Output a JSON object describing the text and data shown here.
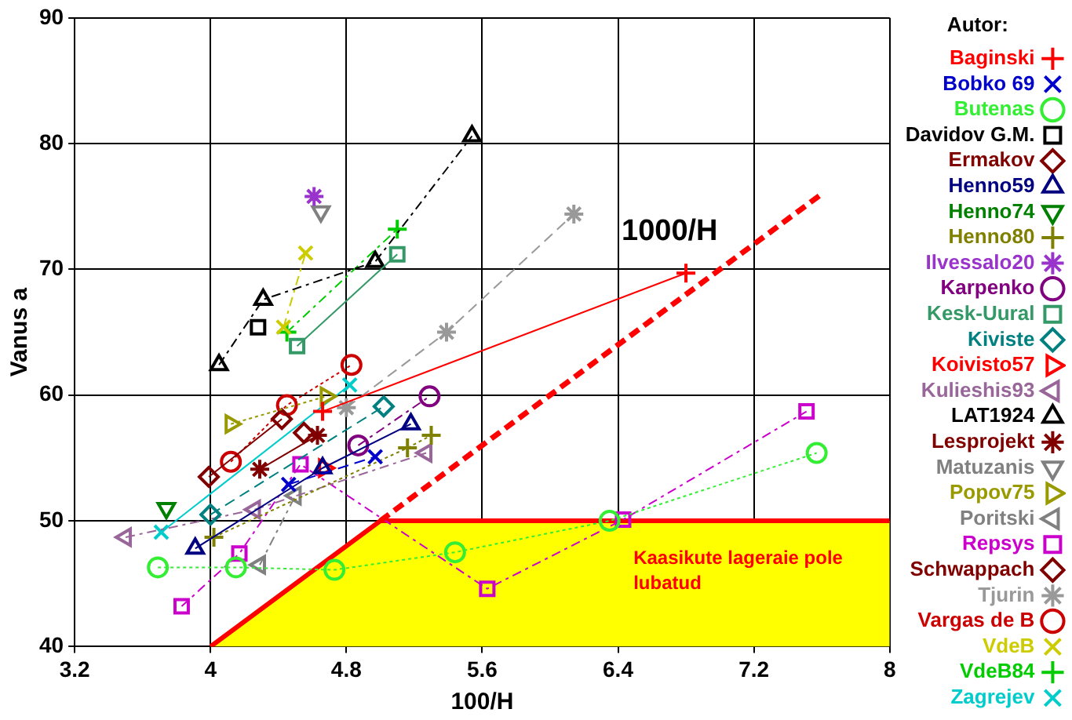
{
  "chart_data": {
    "type": "line",
    "xlabel": "100/H",
    "ylabel": "Vanus a",
    "legend_title": "Autor:",
    "legend": "right",
    "grid": true,
    "xlim": [
      3.2,
      8
    ],
    "xticks": [
      3.2,
      4,
      4.8,
      5.6,
      6.4,
      7.2,
      8
    ],
    "ylim": [
      40,
      90
    ],
    "yticks": [
      40,
      50,
      60,
      70,
      80,
      90
    ],
    "annotations": [
      "1000/H",
      "Kaasikute lageraie pole lubatud"
    ],
    "series": [
      {
        "type": "area",
        "color": "#ffff00",
        "x": [
          4,
          5,
          8
        ],
        "values": [
          40,
          50,
          50
        ],
        "marker": "none",
        "line_style": "solid"
      },
      {
        "type": "line",
        "color": "#ff0000",
        "x": [
          5,
          7.6
        ],
        "values": [
          50,
          76
        ],
        "marker": "none",
        "line_style": "dashed"
      },
      {
        "name": "Baginski",
        "color": "#ff0000",
        "x": [
          4.66,
          6.8
        ],
        "values": [
          58.7,
          69.7
        ],
        "marker": "plus",
        "line_style": "solid"
      },
      {
        "name": "Bobko 69",
        "color": "#0000cc",
        "x": [
          4.46,
          4.97
        ],
        "values": [
          52.9,
          55.1
        ],
        "marker": "x",
        "line_style": "dashed"
      },
      {
        "name": "Butenas",
        "color": "#33ee33",
        "x": [
          3.69,
          4.15,
          4.73,
          5.44,
          6.35,
          7.57
        ],
        "values": [
          46.3,
          46.3,
          46.1,
          47.5,
          50,
          55.4
        ],
        "marker": "circle",
        "line_style": "dotted"
      },
      {
        "name": "Davidov G.M.",
        "color": "#000000",
        "x": [
          4.28
        ],
        "values": [
          65.4
        ],
        "marker": "square",
        "line_style": "dashdot"
      },
      {
        "name": "Ermakov",
        "color": "#800000",
        "x": [
          4.55
        ],
        "values": [
          57
        ],
        "marker": "diamond",
        "line_style": "dashdot"
      },
      {
        "name": "Henno59",
        "color": "#000080",
        "x": [
          3.91,
          4.66,
          5.18
        ],
        "values": [
          47.8,
          54.2,
          57.7
        ],
        "marker": "triangle",
        "line_style": "solid"
      },
      {
        "name": "Henno74",
        "color": "#008000",
        "x": [
          3.74
        ],
        "values": [
          51
        ],
        "marker": "triangle_down",
        "line_style": "dashed"
      },
      {
        "name": "Henno80",
        "color": "#808000",
        "x": [
          4.02,
          5.16,
          5.3
        ],
        "values": [
          48.7,
          55.8,
          56.8
        ],
        "marker": "plus",
        "line_style": "dotted"
      },
      {
        "name": "Ilvessalo20",
        "color": "#9933cc",
        "x": [
          4.61
        ],
        "values": [
          75.8
        ],
        "marker": "cross",
        "line_style": "dashdot"
      },
      {
        "name": "Karpenko",
        "color": "#800080",
        "x": [
          4.87,
          5.29
        ],
        "values": [
          56,
          59.9
        ],
        "marker": "circle",
        "line_style": "dashdot"
      },
      {
        "name": "Kesk-Uural",
        "color": "#339966",
        "x": [
          4.51,
          5.1
        ],
        "values": [
          63.9,
          71.2
        ],
        "marker": "square",
        "line_style": "solid"
      },
      {
        "name": "Kiviste",
        "color": "#008080",
        "x": [
          4,
          5.02
        ],
        "values": [
          50.5,
          59.1
        ],
        "marker": "diamond",
        "line_style": "dashed"
      },
      {
        "name": "Koivisto57",
        "color": "#ff0000",
        "x": [
          4.67
        ],
        "values": [
          54.2
        ],
        "marker": "triangle_right",
        "line_style": "dotted"
      },
      {
        "name": "Kulieshis93",
        "color": "#996699",
        "x": [
          3.5,
          4.26,
          5.27
        ],
        "values": [
          48.7,
          50.9,
          55.4
        ],
        "marker": "triangle_left",
        "line_style": "dashdot"
      },
      {
        "name": "LAT1924",
        "color": "#000000",
        "x": [
          4.05,
          4.31,
          4.97,
          5.54
        ],
        "values": [
          62.4,
          67.6,
          70.6,
          80.6
        ],
        "marker": "triangle",
        "line_style": "dashdot"
      },
      {
        "name": "Lesprojekt",
        "color": "#800000",
        "x": [
          4.29,
          4.63
        ],
        "values": [
          54.1,
          56.8
        ],
        "marker": "cross",
        "line_style": "solid"
      },
      {
        "name": "Matuzanis",
        "color": "#808080",
        "x": [
          4.65
        ],
        "values": [
          74.6
        ],
        "marker": "triangle_down",
        "line_style": "dashed"
      },
      {
        "name": "Popov75",
        "color": "#999900",
        "x": [
          4.12,
          4.68
        ],
        "values": [
          57.7,
          59.9
        ],
        "marker": "triangle_right",
        "line_style": "dotted"
      },
      {
        "name": "Poritski",
        "color": "#808080",
        "x": [
          4.29,
          4.5
        ],
        "values": [
          46.5,
          52
        ],
        "marker": "triangle_left",
        "line_style": "dashdot"
      },
      {
        "name": "Repsys",
        "color": "#cc00cc",
        "x": [
          3.83,
          4.17,
          4.53,
          5.63,
          6.43,
          7.51
        ],
        "values": [
          43.2,
          47.4,
          54.5,
          44.6,
          50.1,
          58.7
        ],
        "marker": "square",
        "line_style": "dashdot"
      },
      {
        "name": "Schwappach",
        "color": "#800000",
        "x": [
          3.99,
          4.42
        ],
        "values": [
          53.5,
          58.1
        ],
        "marker": "diamond",
        "line_style": "solid"
      },
      {
        "name": "Tjurin",
        "color": "#999999",
        "x": [
          4.8,
          5.39,
          6.14
        ],
        "values": [
          59,
          65,
          74.4
        ],
        "marker": "cross",
        "line_style": "dashed"
      },
      {
        "name": "Vargas de B",
        "color": "#cc0000",
        "x": [
          4.12,
          4.45,
          4.83
        ],
        "values": [
          54.7,
          59.2,
          62.4
        ],
        "marker": "circle",
        "line_style": "dotted"
      },
      {
        "name": "VdeB",
        "color": "#cccc00",
        "x": [
          4.43,
          4.56
        ],
        "values": [
          65.4,
          71.3
        ],
        "marker": "x",
        "line_style": "dashdot"
      },
      {
        "name": "VdeB84",
        "color": "#00cc00",
        "x": [
          4.45,
          5.1
        ],
        "values": [
          65,
          73.2
        ],
        "marker": "plus",
        "line_style": "dashdot"
      },
      {
        "name": "Zagrejev",
        "color": "#00cccc",
        "x": [
          3.71,
          4.82
        ],
        "values": [
          49.1,
          60.8
        ],
        "marker": "x",
        "line_style": "solid"
      }
    ]
  }
}
